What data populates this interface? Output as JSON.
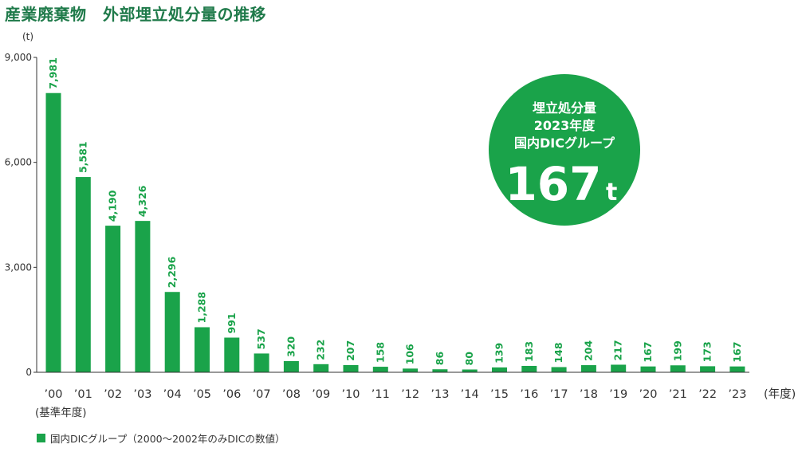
{
  "title": "産業廃棄物　外部埋立処分量の推移",
  "colors": {
    "bar": "#1aa34a",
    "title": "#1f7a4a",
    "axis": "#333333"
  },
  "chart_data": {
    "type": "bar",
    "unit_label": "(t)",
    "x_unit_label": "(年度)",
    "base_year_note": "(基準年度)",
    "categories": [
      "’00",
      "’01",
      "’02",
      "’03",
      "’04",
      "’05",
      "’06",
      "’07",
      "’08",
      "’09",
      "’10",
      "’11",
      "’12",
      "’13",
      "’14",
      "’15",
      "’16",
      "’17",
      "’18",
      "’19",
      "’20",
      "’21",
      "’22",
      "’23"
    ],
    "series": [
      {
        "name": "国内DICグループ（2000～2002年のみDICの数値）",
        "values": [
          7981,
          5581,
          4190,
          4326,
          2296,
          1288,
          991,
          537,
          320,
          232,
          207,
          158,
          106,
          86,
          80,
          139,
          183,
          148,
          204,
          217,
          167,
          199,
          173,
          167
        ],
        "labels": [
          "7,981",
          "5,581",
          "4,190",
          "4,326",
          "2,296",
          "1,288",
          "991",
          "537",
          "320",
          "232",
          "207",
          "158",
          "106",
          "86",
          "80",
          "139",
          "183",
          "148",
          "204",
          "217",
          "167",
          "199",
          "173",
          "167"
        ]
      }
    ],
    "yticks": [
      0,
      3000,
      6000,
      9000
    ],
    "ytick_labels": [
      "0",
      "3,000",
      "6,000",
      "9,000"
    ],
    "ylim": [
      0,
      9000
    ],
    "grid": false,
    "legend_position": "bottom-left",
    "badge": {
      "lines": [
        "埋立処分量",
        "2023年度",
        "国内DICグループ"
      ],
      "value": "167",
      "unit": "t"
    }
  }
}
